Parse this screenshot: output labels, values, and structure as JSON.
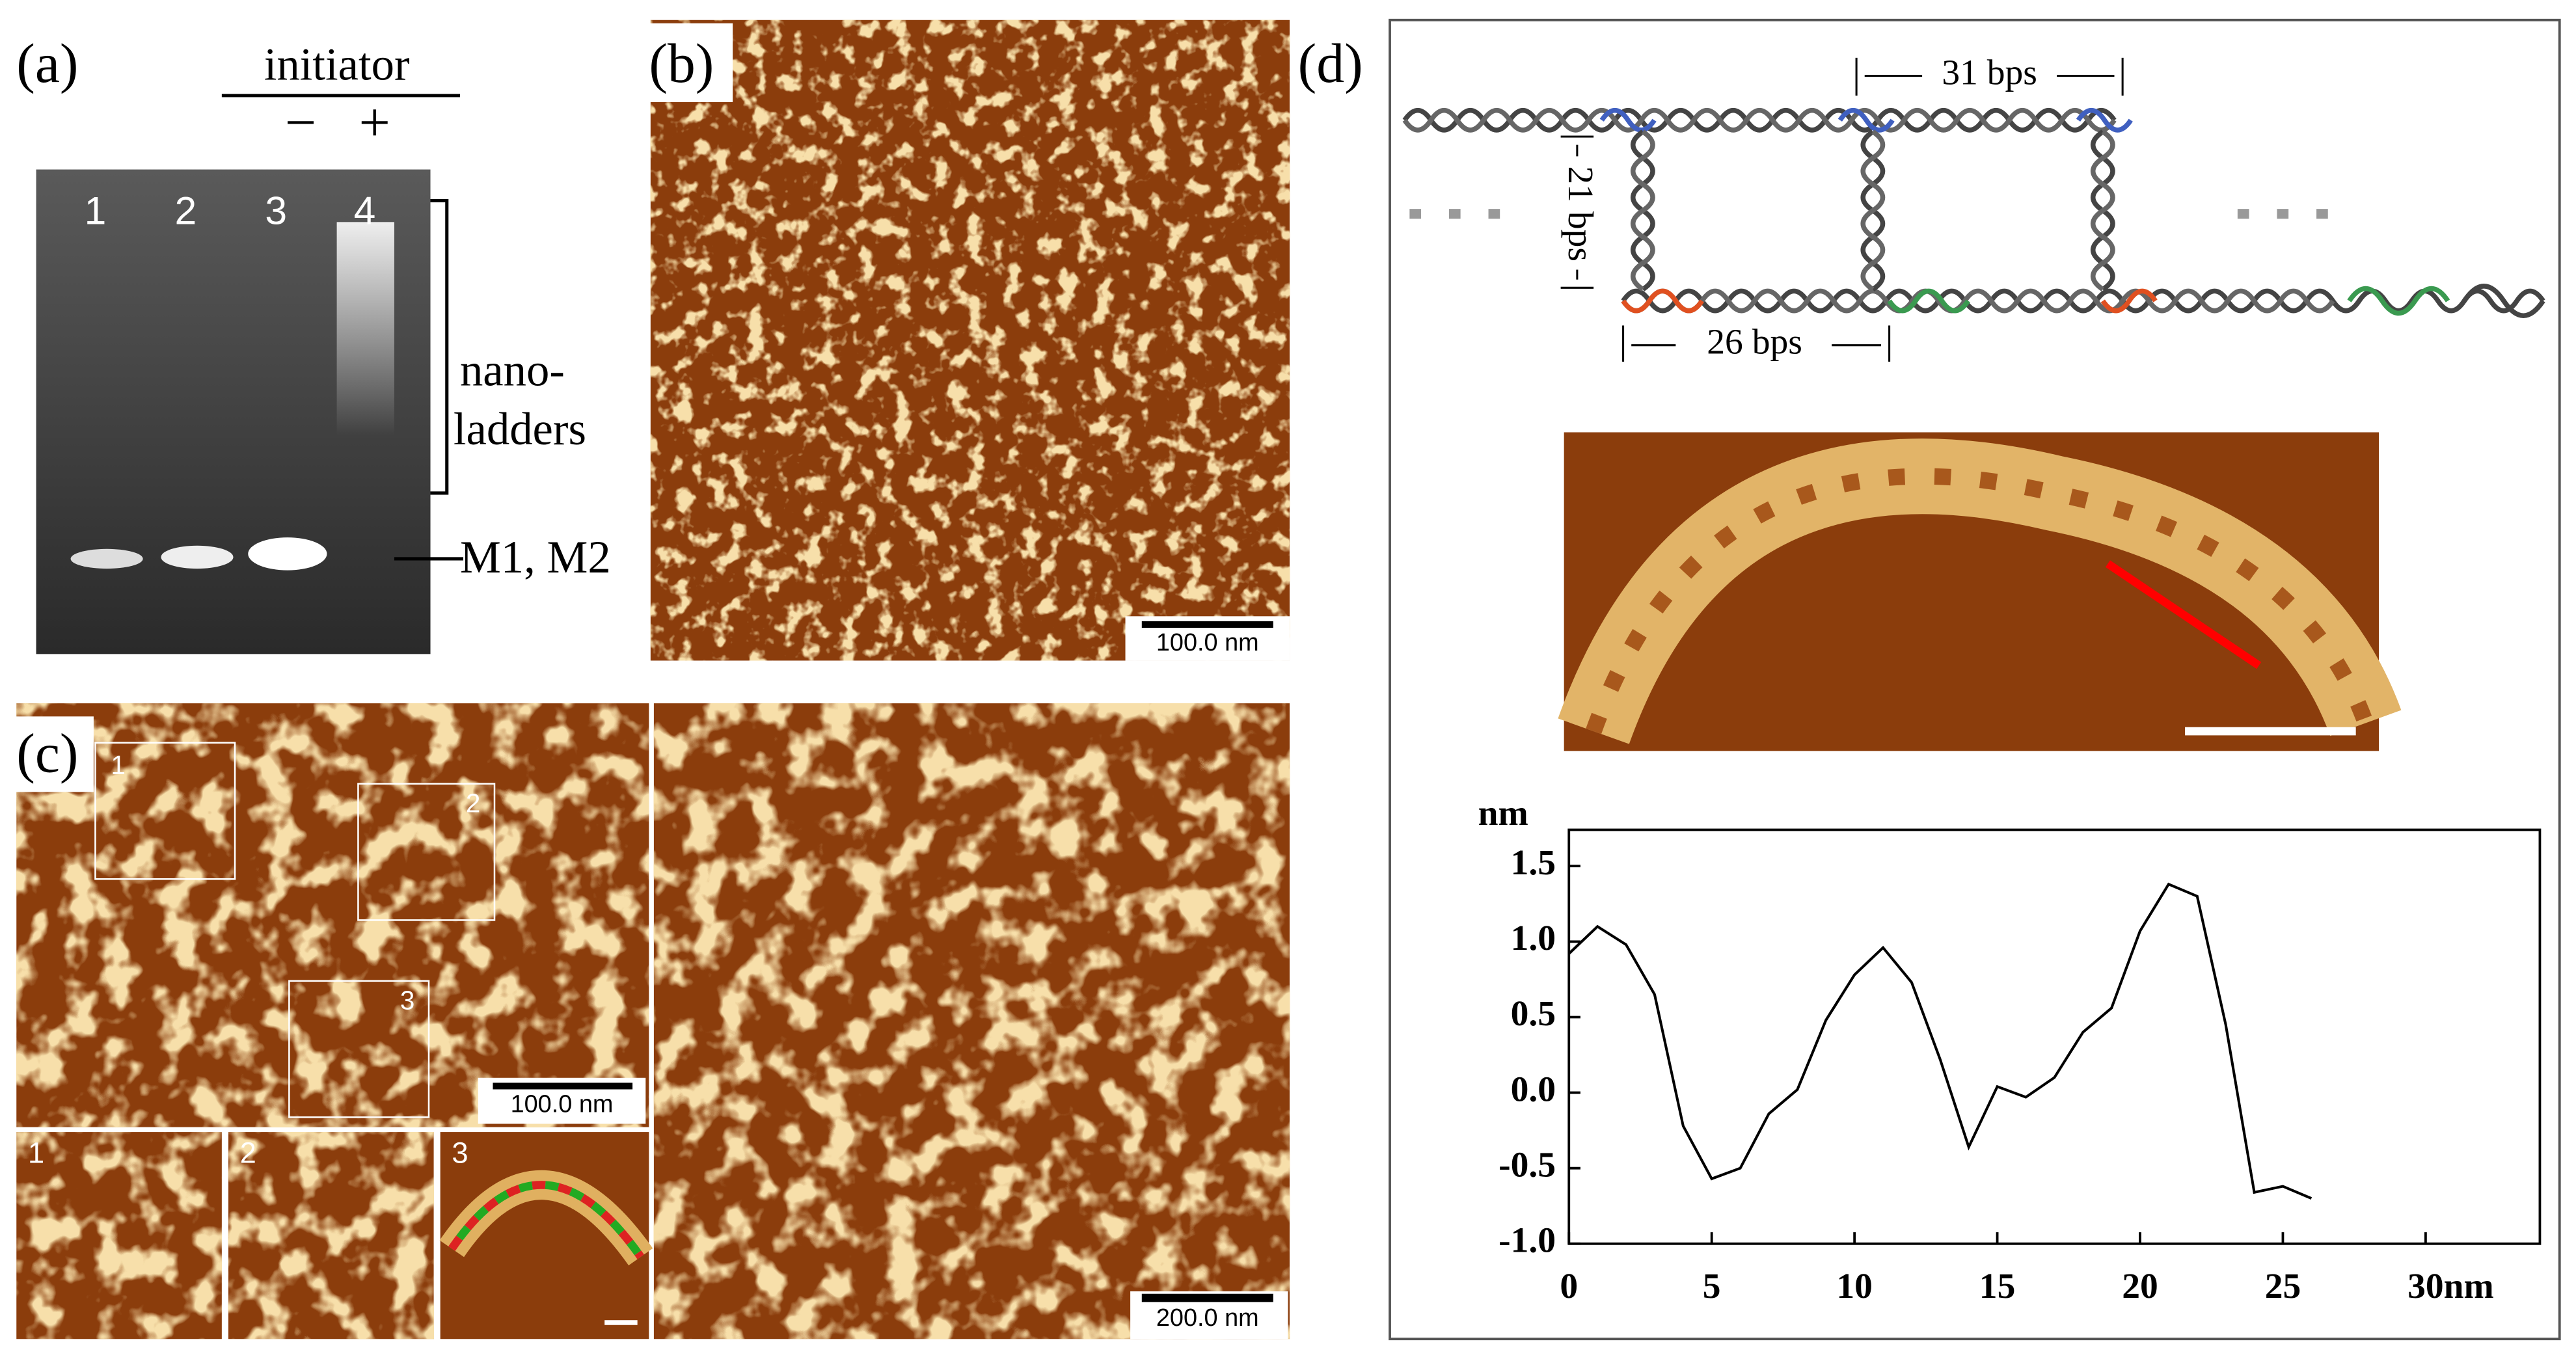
{
  "panel_a": {
    "label": "(a)",
    "initiator": "initiator",
    "minus": "−",
    "plus": "+",
    "lanes": [
      "1",
      "2",
      "3",
      "4"
    ],
    "bracket_label": [
      "nano-",
      "ladders"
    ],
    "band_label": "M1, M2"
  },
  "panel_b": {
    "label": "(b)",
    "scale_bar": "100.0 nm"
  },
  "panel_c": {
    "label": "(c)",
    "boxes": [
      "1",
      "2",
      "3"
    ],
    "scale_bar_left": "100.0 nm",
    "scale_bar_right": "200.0 nm",
    "insets": [
      "1",
      "2",
      "3"
    ]
  },
  "panel_d": {
    "label": "(d)",
    "top_span": "31 bps",
    "rung_span": "21 bps",
    "bottom_span": "26 bps"
  },
  "chart_data": {
    "type": "line",
    "y_label": "nm",
    "x_label": "nm",
    "x": [
      0,
      1,
      2,
      3,
      4,
      5,
      6,
      7,
      8,
      9,
      10,
      11,
      12,
      13,
      14,
      15,
      16,
      17,
      18,
      19,
      20,
      21,
      22,
      23,
      24,
      25,
      26
    ],
    "series": [
      {
        "color": "#000000",
        "values": [
          0.92,
          1.1,
          0.98,
          0.65,
          -0.22,
          -0.57,
          -0.5,
          -0.14,
          0.02,
          0.48,
          0.78,
          0.96,
          0.73,
          0.22,
          -0.36,
          0.04,
          -0.03,
          0.1,
          0.4,
          0.56,
          1.07,
          1.38,
          1.3,
          0.45,
          -0.66,
          -0.62,
          -0.7
        ]
      }
    ],
    "xlim": [
      0,
      34
    ],
    "xticks": [
      0,
      5,
      10,
      15,
      20,
      25,
      30
    ],
    "ylim": [
      -1.0,
      1.74
    ],
    "yticks": [
      {
        "value": 1.5,
        "label": "1.5"
      },
      {
        "value": 1.0,
        "label": "1.0"
      },
      {
        "value": 0.5,
        "label": "0.5"
      },
      {
        "value": 0.0,
        "label": "0.0"
      },
      {
        "value": -0.5,
        "label": "-0.5"
      },
      {
        "value": -1.0,
        "label": "-1.0"
      }
    ]
  }
}
